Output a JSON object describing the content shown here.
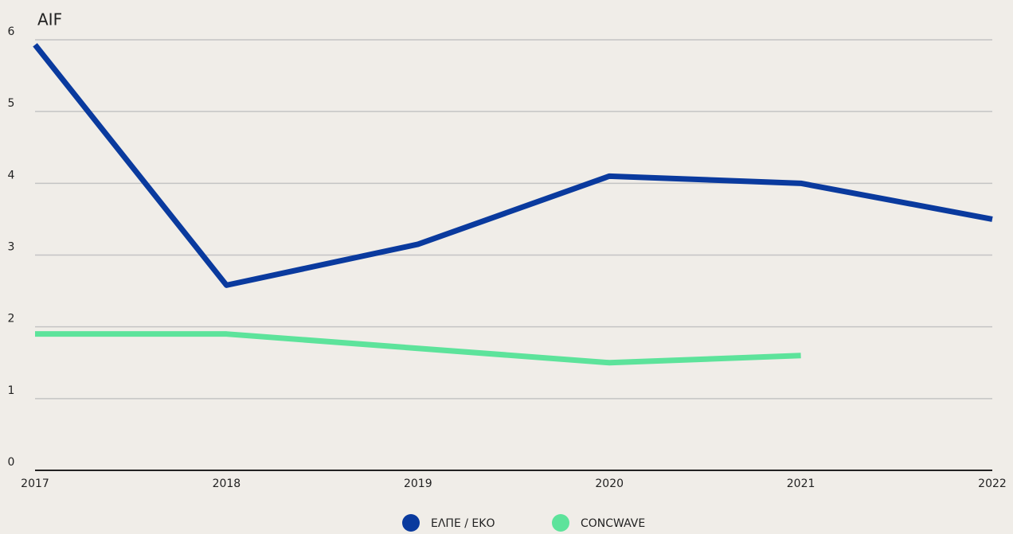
{
  "chart_data": {
    "type": "line",
    "title": "AIF",
    "categories": [
      "2017",
      "2018",
      "2019",
      "2020",
      "2021",
      "2022"
    ],
    "series": [
      {
        "name": "ΕΛΠΕ / ΕΚΟ",
        "color": "#0a3a9e",
        "values": [
          5.93,
          2.58,
          3.15,
          4.1,
          4.0,
          3.5
        ]
      },
      {
        "name": "CONCWAVE",
        "color": "#5de39b",
        "values": [
          1.9,
          1.9,
          1.7,
          1.5,
          1.6,
          null
        ]
      }
    ],
    "ylim": [
      0,
      6
    ],
    "yticks": [
      0,
      1,
      2,
      3,
      4,
      5,
      6
    ],
    "grid": true,
    "legend": "bottom"
  }
}
